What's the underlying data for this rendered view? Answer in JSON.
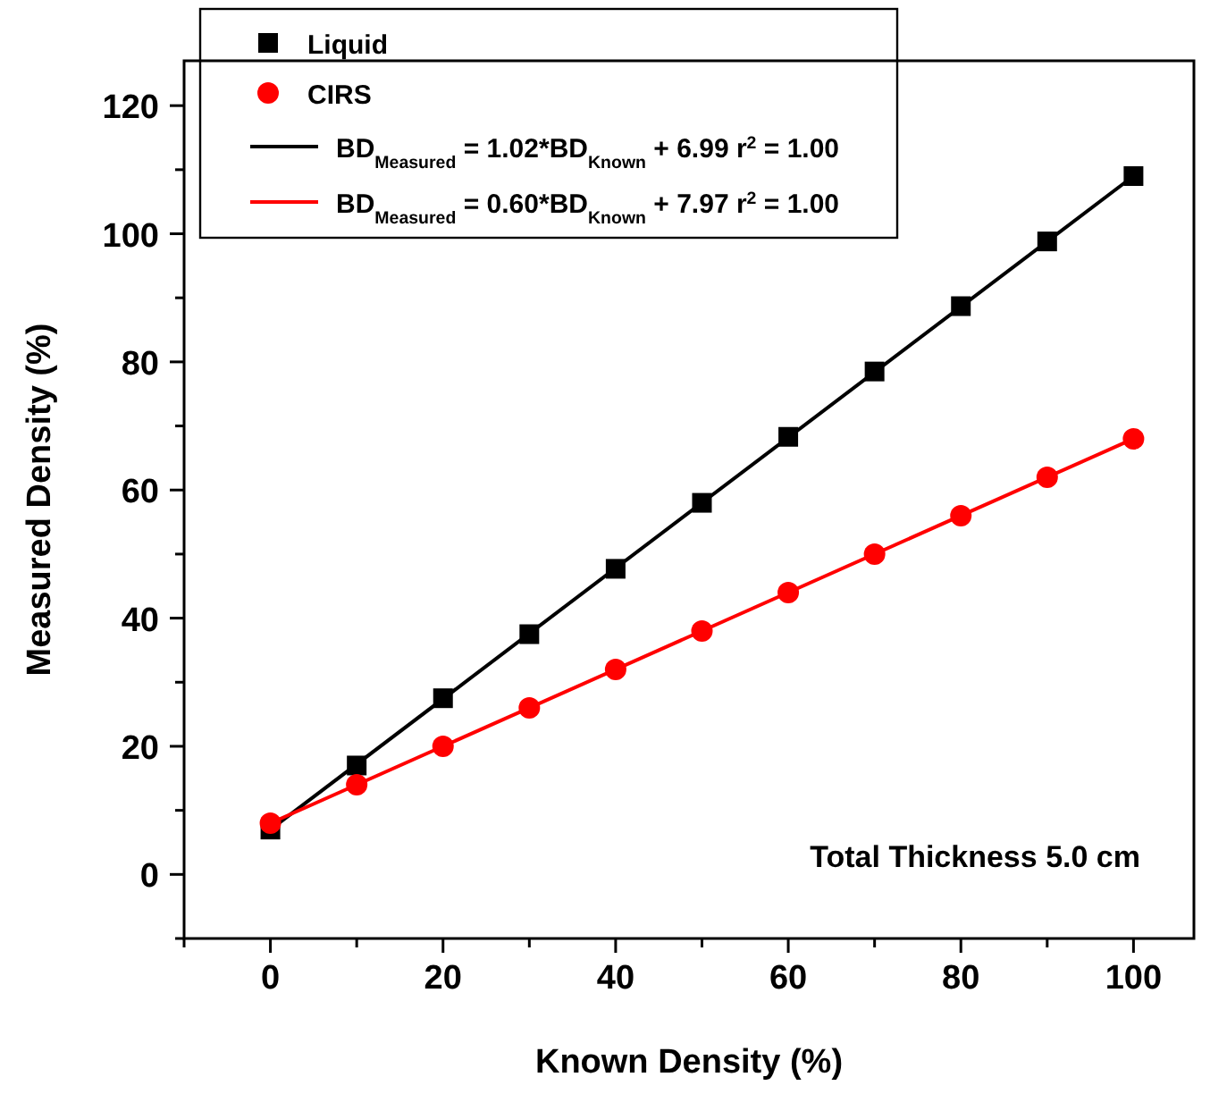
{
  "chart_data": {
    "type": "scatter",
    "xlabel": "Known Density (%)",
    "ylabel": "Measured Density (%)",
    "xlim": [
      -10,
      107
    ],
    "ylim": [
      -10,
      127
    ],
    "xticks": [
      {
        "value": -10,
        "label": null
      },
      0,
      {
        "value": 10,
        "label": null
      },
      20,
      {
        "value": 30,
        "label": null
      },
      40,
      {
        "value": 50,
        "label": null
      },
      60,
      {
        "value": 70,
        "label": null
      },
      80,
      {
        "value": 90,
        "label": null
      },
      100
    ],
    "yticks": [
      {
        "value": -10,
        "label": null
      },
      0,
      {
        "value": 10,
        "label": null
      },
      20,
      {
        "value": 30,
        "label": null
      },
      40,
      {
        "value": 50,
        "label": null
      },
      60,
      {
        "value": 70,
        "label": null
      },
      80,
      {
        "value": 90,
        "label": null
      },
      100,
      {
        "value": 110,
        "label": null
      },
      120
    ],
    "legend": "top left",
    "grid": false,
    "annotations": [
      "Total Thickness 5.0 cm"
    ],
    "series": [
      {
        "name": "Liquid",
        "marker": "square",
        "color": "#000000",
        "x": [
          0,
          10,
          20,
          30,
          40,
          50,
          60,
          70,
          80,
          90,
          100
        ],
        "values": [
          7,
          17,
          27.5,
          37.5,
          47.7,
          58,
          68.3,
          78.5,
          88.7,
          98.8,
          109
        ]
      },
      {
        "name": "CIRS",
        "marker": "circle",
        "color": "#ff0000",
        "x": [
          0,
          10,
          20,
          30,
          40,
          50,
          60,
          70,
          80,
          90,
          100
        ],
        "values": [
          8,
          14,
          20,
          26,
          32,
          38,
          44,
          50,
          56,
          62,
          68
        ]
      },
      {
        "name": "BD$_{Measured}$ = 1.02*BD$_{Known}$ + 6.99   r$^{2}$ = 1.00",
        "type": "line",
        "marker": "none",
        "color": "#000000",
        "x": [
          0,
          100
        ],
        "values": [
          7,
          109
        ]
      },
      {
        "name": "BD$_{Measured}$ = 0.60*BD$_{Known}$ + 7.97   r$^{2}$ = 1.00",
        "type": "line",
        "marker": "none",
        "color": "#ff0000",
        "x": [
          0,
          100
        ],
        "values": [
          8,
          68
        ]
      }
    ]
  }
}
